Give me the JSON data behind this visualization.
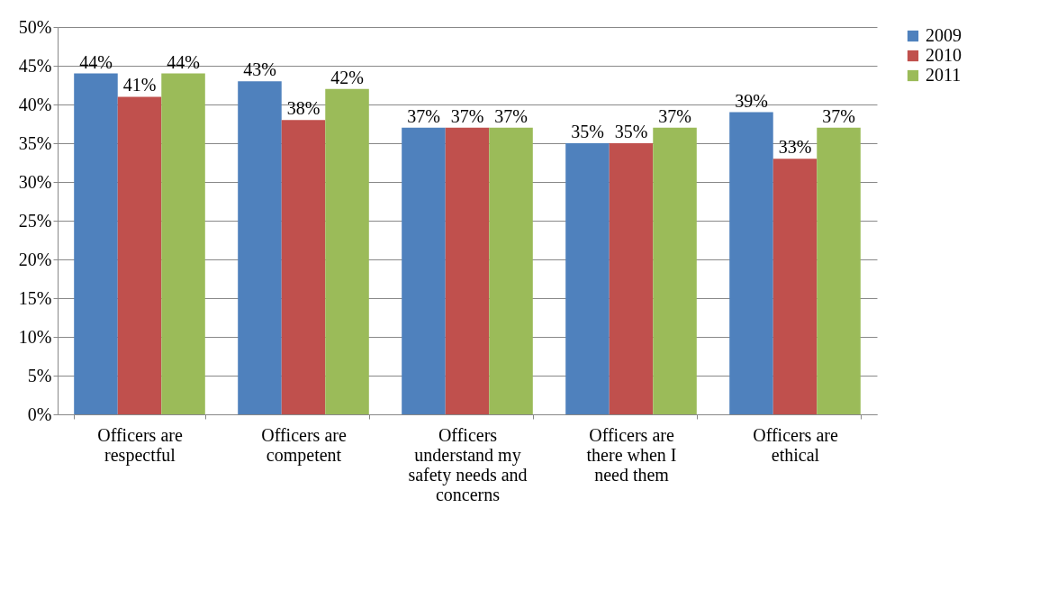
{
  "chart_data": {
    "type": "bar",
    "categories": [
      "Officers are respectful",
      "Officers are competent",
      "Officers understand my safety needs and concerns",
      "Officers are there when I need them",
      "Officers are ethical"
    ],
    "series": [
      {
        "name": "2009",
        "color": "#4f81bd",
        "values": [
          44,
          43,
          37,
          35,
          39
        ],
        "value_labels": [
          "44%",
          "43%",
          "37%",
          "35%",
          "39%"
        ]
      },
      {
        "name": "2010",
        "color": "#c0504d",
        "values": [
          41,
          38,
          37,
          35,
          33
        ],
        "value_labels": [
          "41%",
          "38%",
          "37%",
          "35%",
          "33%"
        ]
      },
      {
        "name": "2011",
        "color": "#9bbb59",
        "values": [
          44,
          42,
          37,
          37,
          37
        ],
        "value_labels": [
          "44%",
          "42%",
          "37%",
          "37%",
          "37%"
        ]
      }
    ],
    "ylim": [
      0,
      50
    ],
    "yticks": [
      {
        "value": 0,
        "label": "0%"
      },
      {
        "value": 5,
        "label": "5%"
      },
      {
        "value": 10,
        "label": "10%"
      },
      {
        "value": 15,
        "label": "15%"
      },
      {
        "value": 20,
        "label": "20%"
      },
      {
        "value": 25,
        "label": "25%"
      },
      {
        "value": 30,
        "label": "30%"
      },
      {
        "value": 35,
        "label": "35%"
      },
      {
        "value": 40,
        "label": "40%"
      },
      {
        "value": 45,
        "label": "45%"
      },
      {
        "value": 50,
        "label": "50%"
      }
    ],
    "grid": "y",
    "legend": "right"
  }
}
